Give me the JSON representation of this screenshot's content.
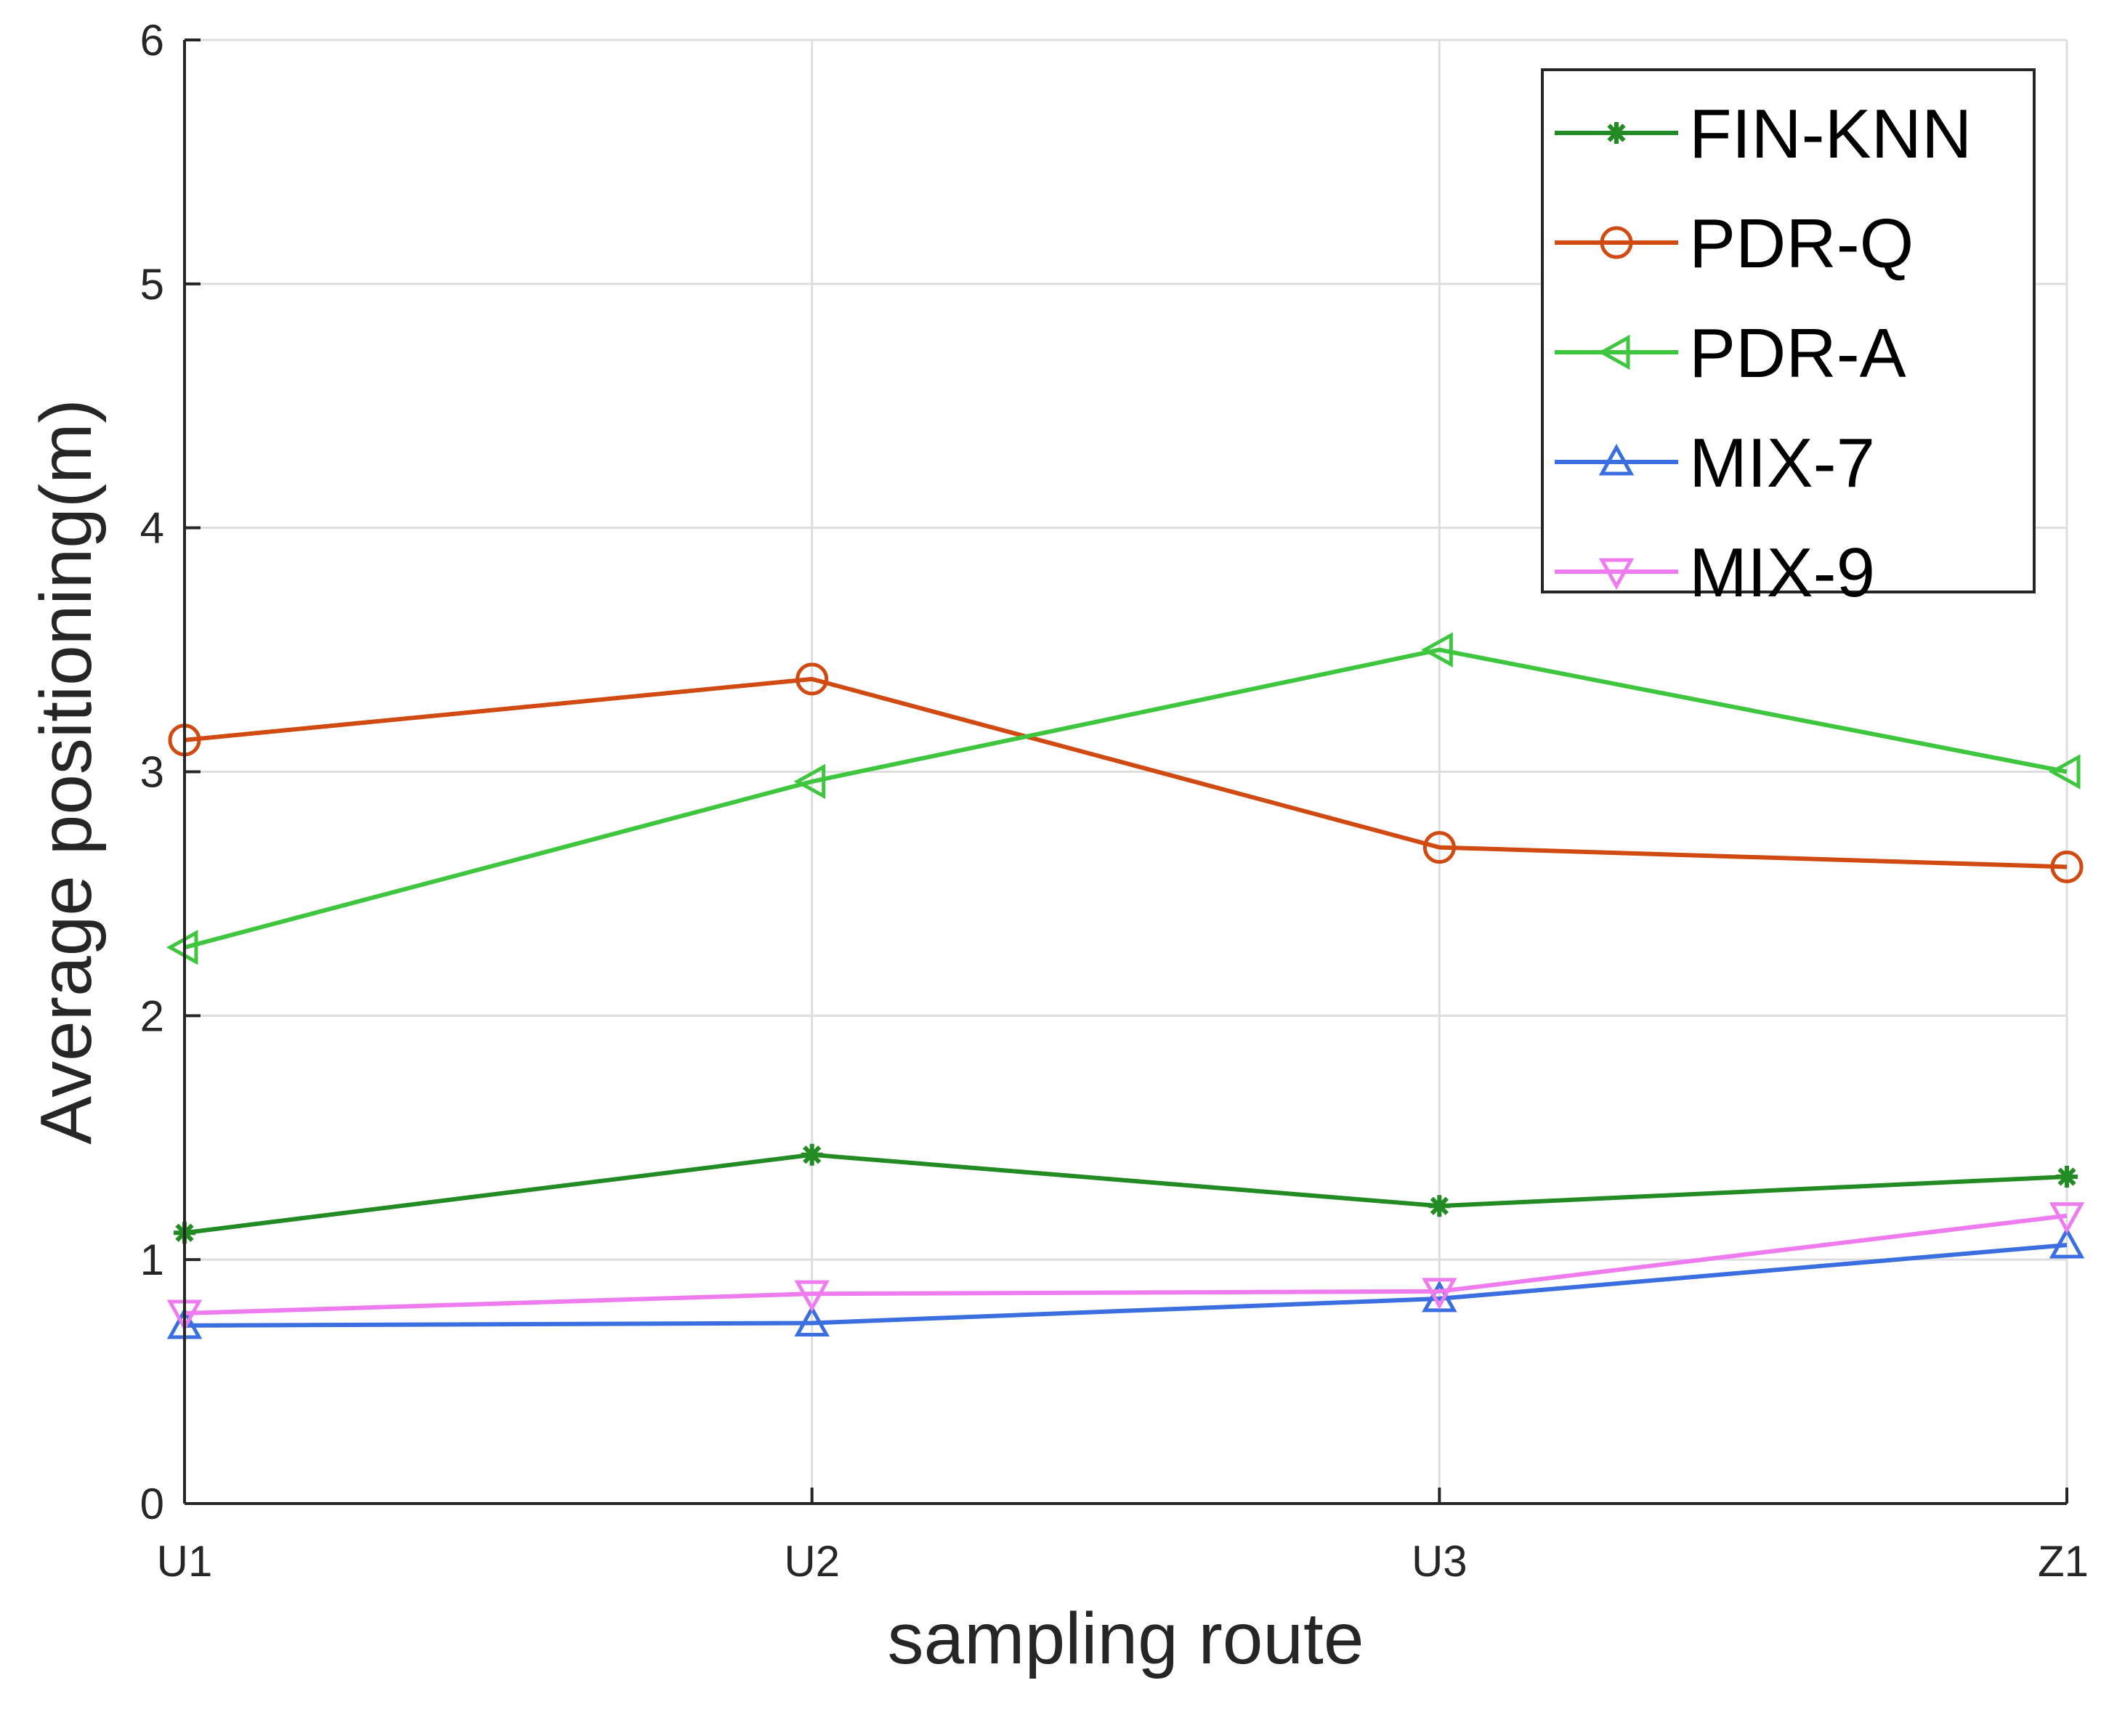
{
  "chart_data": {
    "type": "line",
    "title": "",
    "xlabel": "sampling route",
    "ylabel": "Average positioning(m)",
    "categories": [
      "U1",
      "U2",
      "U3",
      "Z1"
    ],
    "ylim": [
      0,
      6
    ],
    "yticks": [
      0,
      1,
      2,
      3,
      4,
      5,
      6
    ],
    "grid": true,
    "legend_position": "top-right",
    "series": [
      {
        "name": "FIN-KNN",
        "color": "#238b23",
        "marker": "asterisk",
        "values": [
          1.11,
          1.43,
          1.22,
          1.34
        ]
      },
      {
        "name": "PDR-Q",
        "color": "#d04a12",
        "marker": "circle",
        "values": [
          3.13,
          3.38,
          2.69,
          2.61
        ]
      },
      {
        "name": "PDR-A",
        "color": "#3ec63e",
        "marker": "triangle-left",
        "values": [
          2.28,
          2.96,
          3.5,
          3.0
        ]
      },
      {
        "name": "MIX-7",
        "color": "#3b6fe0",
        "marker": "triangle-up",
        "values": [
          0.73,
          0.74,
          0.84,
          1.06
        ]
      },
      {
        "name": "MIX-9",
        "color": "#ef7cef",
        "marker": "triangle-down",
        "values": [
          0.78,
          0.86,
          0.87,
          1.18
        ]
      }
    ]
  }
}
